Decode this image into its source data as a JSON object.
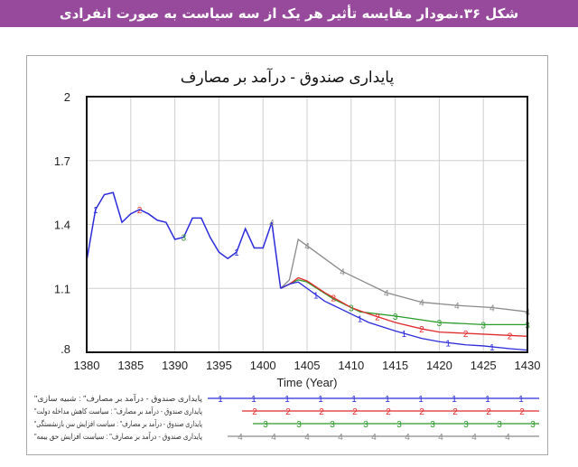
{
  "header": {
    "caption": "شکل ۳۶.نمودار مقایسه تأثیر هر یک از سه سیاست به صورت انفرادی",
    "bg_color": "#974a9c"
  },
  "chart_data": {
    "type": "line",
    "title": "پایداری صندوق - درآمد بر مصارف",
    "xlabel": "Time (Year)",
    "ylabel": "",
    "xlim": [
      1380,
      1430
    ],
    "ylim": [
      0.8,
      2
    ],
    "x_ticks": [
      "1380",
      "1385",
      "1390",
      "1395",
      "1400",
      "1405",
      "1410",
      "1415",
      "1420",
      "1425",
      "1430"
    ],
    "y_ticks": [
      ".8",
      "1.1",
      "1.4",
      "1.7",
      "2"
    ],
    "grid": true,
    "legend_position": "bottom",
    "history": {
      "x": [
        1380,
        1381,
        1382,
        1383,
        1384,
        1385,
        1386,
        1387,
        1388,
        1389,
        1390,
        1391,
        1392,
        1393,
        1394,
        1395,
        1396,
        1397,
        1398,
        1399,
        1400,
        1401,
        1402
      ],
      "y": [
        1.23,
        1.47,
        1.54,
        1.55,
        1.41,
        1.45,
        1.47,
        1.45,
        1.42,
        1.41,
        1.33,
        1.34,
        1.43,
        1.43,
        1.34,
        1.27,
        1.24,
        1.27,
        1.38,
        1.29,
        1.29,
        1.41,
        1.1
      ]
    },
    "series": [
      {
        "name": "پایداری صندوق - درآمد بر مصارف\" : شبیه سازی\"",
        "marker": "1",
        "color": "#2b2bdc",
        "x": [
          1402,
          1403,
          1404,
          1405,
          1406,
          1407,
          1408,
          1409,
          1410,
          1412,
          1415,
          1418,
          1420,
          1423,
          1425,
          1428,
          1430
        ],
        "y": [
          1.1,
          1.12,
          1.13,
          1.1,
          1.07,
          1.04,
          1.02,
          1.0,
          0.98,
          0.94,
          0.9,
          0.865,
          0.85,
          0.835,
          0.83,
          0.817,
          0.81
        ]
      },
      {
        "name": "پایداری صندوق - درآمد بر مصارف\" : سیاست کاهش مداخله دولت\"",
        "marker": "2",
        "color": "#e02a2a",
        "x": [
          1402,
          1403,
          1404,
          1405,
          1407,
          1410,
          1412,
          1415,
          1418,
          1420,
          1425,
          1430
        ],
        "y": [
          1.1,
          1.12,
          1.15,
          1.135,
          1.08,
          1.01,
          0.98,
          0.94,
          0.91,
          0.895,
          0.885,
          0.875
        ]
      },
      {
        "name": "پایداری صندوق - درآمد بر مصارف\" : سیاست افزایش سن بازنشستگی\"",
        "marker": "3",
        "color": "#2a9a2a",
        "x": [
          1402,
          1403,
          1404,
          1405,
          1408,
          1411,
          1415,
          1420,
          1425,
          1430
        ],
        "y": [
          1.1,
          1.12,
          1.14,
          1.13,
          1.05,
          0.99,
          0.97,
          0.94,
          0.93,
          0.93
        ]
      },
      {
        "name": "پایداری صندوق - درآمد بر مصارف\" : سیاست افزایش حق بیمه\"",
        "marker": "4",
        "color": "#8a8a8a",
        "x": [
          1402,
          1403,
          1404,
          1405,
          1409,
          1414,
          1418,
          1422,
          1426,
          1430
        ],
        "y": [
          1.1,
          1.14,
          1.33,
          1.3,
          1.18,
          1.08,
          1.035,
          1.02,
          1.01,
          0.99
        ]
      }
    ]
  }
}
